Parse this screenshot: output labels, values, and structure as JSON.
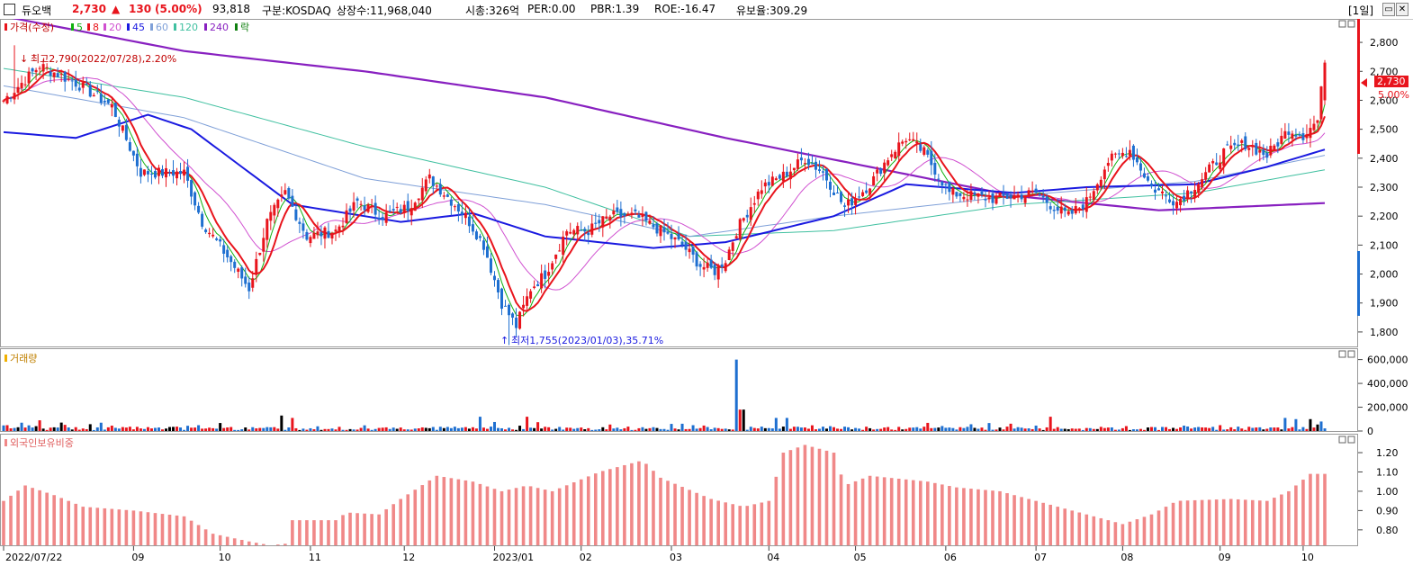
{
  "header": {
    "name": "듀오백",
    "price": "2,730",
    "change_arrow": "▲",
    "change": "130",
    "change_pct": "(5.00%)",
    "volume": "93,818",
    "market": "구분:KOSDAQ",
    "shares": "상장수:11,968,040",
    "market_cap": "시총:326억",
    "per": "PER:0.00",
    "pbr": "PBR:1.39",
    "roe": "ROE:-16.47",
    "retention": "유보율:309.29",
    "period_button": "[1일]",
    "restore_icon": "restore-icon",
    "close_icon": "close-icon"
  },
  "colors": {
    "up": "#e8141c",
    "down": "#1e6fd0",
    "ma5": "#10b010",
    "ma8": "#e8141c",
    "ma20": "#d050d0",
    "ma45": "#1a1ae0",
    "ma60": "#7fa0d8",
    "ma120": "#40c0a0",
    "ma240": "#8820c0",
    "foreign": "#f08888"
  },
  "price_panel": {
    "legend": [
      {
        "label": "가격(수정)",
        "color": "#e8141c"
      },
      {
        "label": "5",
        "color": "#10b010"
      },
      {
        "label": "8",
        "color": "#e8141c"
      },
      {
        "label": "20",
        "color": "#d050d0"
      },
      {
        "label": "45",
        "color": "#1a1ae0"
      },
      {
        "label": "60",
        "color": "#7fa0d8"
      },
      {
        "label": "120",
        "color": "#40c0a0"
      },
      {
        "label": "240",
        "color": "#8820c0"
      },
      {
        "label": "락",
        "color": "#108010"
      }
    ],
    "high_annotation": "최고2,790(2022/07/28),2.20%",
    "low_annotation": "최저1,755(2023/01/03),35.71%",
    "price_label": "2,730",
    "pct_label": "5.00%"
  },
  "volume_panel": {
    "title": "거래량"
  },
  "foreign_panel": {
    "title": "외국인보유비중"
  },
  "chart_data": [
    {
      "type": "candlestick",
      "ylim": [
        1750,
        2850
      ],
      "y_ticks": [
        "2,800",
        "2,700",
        "2,600",
        "2,500",
        "2,400",
        "2,300",
        "2,200",
        "2,100",
        "2,000",
        "1,900",
        "1,800"
      ],
      "x_ticks": [
        "2022/07/22",
        "09",
        "10",
        "11",
        "12",
        "2023/01",
        "02",
        "03",
        "04",
        "05",
        "06",
        "07",
        "08",
        "09",
        "10"
      ],
      "keypoints": [
        [
          0,
          2600
        ],
        [
          10,
          2720
        ],
        [
          20,
          2660
        ],
        [
          30,
          2580
        ],
        [
          38,
          2350
        ],
        [
          45,
          2350
        ],
        [
          50,
          2350
        ],
        [
          55,
          2180
        ],
        [
          62,
          2060
        ],
        [
          68,
          1950
        ],
        [
          73,
          2180
        ],
        [
          78,
          2280
        ],
        [
          84,
          2130
        ],
        [
          92,
          2150
        ],
        [
          98,
          2250
        ],
        [
          105,
          2200
        ],
        [
          112,
          2230
        ],
        [
          118,
          2330
        ],
        [
          122,
          2280
        ],
        [
          128,
          2200
        ],
        [
          133,
          2100
        ],
        [
          138,
          1900
        ],
        [
          142,
          1820
        ],
        [
          146,
          1950
        ],
        [
          150,
          2000
        ],
        [
          156,
          2150
        ],
        [
          162,
          2150
        ],
        [
          168,
          2200
        ],
        [
          175,
          2200
        ],
        [
          182,
          2150
        ],
        [
          188,
          2100
        ],
        [
          193,
          2030
        ],
        [
          197,
          2010
        ],
        [
          200,
          2050
        ],
        [
          203,
          2150
        ],
        [
          210,
          2300
        ],
        [
          216,
          2340
        ],
        [
          222,
          2400
        ],
        [
          227,
          2350
        ],
        [
          233,
          2230
        ],
        [
          240,
          2310
        ],
        [
          246,
          2420
        ],
        [
          250,
          2470
        ],
        [
          255,
          2420
        ],
        [
          262,
          2280
        ],
        [
          268,
          2270
        ],
        [
          274,
          2260
        ],
        [
          280,
          2270
        ],
        [
          286,
          2280
        ],
        [
          290,
          2240
        ],
        [
          295,
          2200
        ],
        [
          300,
          2250
        ],
        [
          306,
          2390
        ],
        [
          312,
          2430
        ],
        [
          318,
          2300
        ],
        [
          325,
          2250
        ],
        [
          332,
          2330
        ],
        [
          338,
          2420
        ],
        [
          344,
          2450
        ],
        [
          350,
          2410
        ],
        [
          356,
          2500
        ],
        [
          360,
          2480
        ],
        [
          364,
          2530
        ],
        [
          366,
          2730
        ]
      ],
      "ma_keypoints": {
        "ma240": [
          [
            0,
            2890
          ],
          [
            50,
            2770
          ],
          [
            100,
            2700
          ],
          [
            150,
            2610
          ],
          [
            200,
            2470
          ],
          [
            240,
            2370
          ],
          [
            280,
            2270
          ],
          [
            320,
            2220
          ],
          [
            366,
            2245
          ]
        ],
        "ma120": [
          [
            0,
            2710
          ],
          [
            50,
            2610
          ],
          [
            100,
            2440
          ],
          [
            150,
            2300
          ],
          [
            190,
            2130
          ],
          [
            230,
            2150
          ],
          [
            280,
            2240
          ],
          [
            330,
            2280
          ],
          [
            366,
            2360
          ]
        ],
        "ma60": [
          [
            0,
            2650
          ],
          [
            50,
            2540
          ],
          [
            100,
            2330
          ],
          [
            150,
            2240
          ],
          [
            190,
            2130
          ],
          [
            230,
            2200
          ],
          [
            280,
            2270
          ],
          [
            330,
            2320
          ],
          [
            366,
            2410
          ]
        ],
        "ma45": [
          [
            0,
            2490
          ],
          [
            20,
            2470
          ],
          [
            40,
            2550
          ],
          [
            52,
            2500
          ],
          [
            80,
            2240
          ],
          [
            110,
            2180
          ],
          [
            130,
            2210
          ],
          [
            150,
            2130
          ],
          [
            180,
            2090
          ],
          [
            200,
            2110
          ],
          [
            230,
            2200
          ],
          [
            250,
            2310
          ],
          [
            280,
            2280
          ],
          [
            300,
            2300
          ],
          [
            330,
            2310
          ],
          [
            350,
            2370
          ],
          [
            366,
            2430
          ]
        ]
      },
      "highlights": {
        "high": {
          "date": "2022/07/28",
          "price": 2790
        },
        "low": {
          "date": "2023/01/03",
          "price": 1755
        },
        "last": {
          "price": 2730,
          "pct": "5.00%"
        }
      }
    },
    {
      "type": "bar",
      "ylim": [
        0,
        650000
      ],
      "y_ticks": [
        "600,000",
        "400,000",
        "200,000",
        "0"
      ],
      "spikes": {
        "5": 70000,
        "10": 90000,
        "27": 70000,
        "77": 130000,
        "80": 110000,
        "132": 120000,
        "145": 120000,
        "203": 600000,
        "204": 180000,
        "205": 180000,
        "214": 110000,
        "217": 110000,
        "290": 120000,
        "355": 110000,
        "358": 100000,
        "362": 100000,
        "365": 80000
      }
    },
    {
      "type": "bar",
      "ylim": [
        0.72,
        1.27
      ],
      "y_ticks": [
        "1.20",
        "1.10",
        "1.00",
        "0.90",
        "0.80"
      ],
      "keypoints": [
        [
          0,
          0.95
        ],
        [
          6,
          1.03
        ],
        [
          14,
          0.98
        ],
        [
          22,
          0.92
        ],
        [
          36,
          0.9
        ],
        [
          50,
          0.87
        ],
        [
          58,
          0.78
        ],
        [
          68,
          0.74
        ],
        [
          74,
          0.72
        ],
        [
          79,
          0.73
        ],
        [
          80,
          0.85
        ],
        [
          92,
          0.85
        ],
        [
          95,
          0.89
        ],
        [
          104,
          0.88
        ],
        [
          110,
          0.96
        ],
        [
          120,
          1.08
        ],
        [
          130,
          1.05
        ],
        [
          138,
          1.0
        ],
        [
          145,
          1.03
        ],
        [
          152,
          1.0
        ],
        [
          165,
          1.1
        ],
        [
          177,
          1.16
        ],
        [
          182,
          1.07
        ],
        [
          196,
          0.96
        ],
        [
          205,
          0.92
        ],
        [
          212,
          0.95
        ],
        [
          216,
          1.2
        ],
        [
          222,
          1.24
        ],
        [
          230,
          1.2
        ],
        [
          233,
          1.03
        ],
        [
          240,
          1.08
        ],
        [
          256,
          1.05
        ],
        [
          264,
          1.02
        ],
        [
          276,
          1.0
        ],
        [
          288,
          0.94
        ],
        [
          300,
          0.88
        ],
        [
          310,
          0.83
        ],
        [
          318,
          0.88
        ],
        [
          325,
          0.95
        ],
        [
          340,
          0.96
        ],
        [
          350,
          0.95
        ],
        [
          356,
          1.0
        ],
        [
          362,
          1.09
        ],
        [
          366,
          1.09
        ]
      ]
    }
  ]
}
